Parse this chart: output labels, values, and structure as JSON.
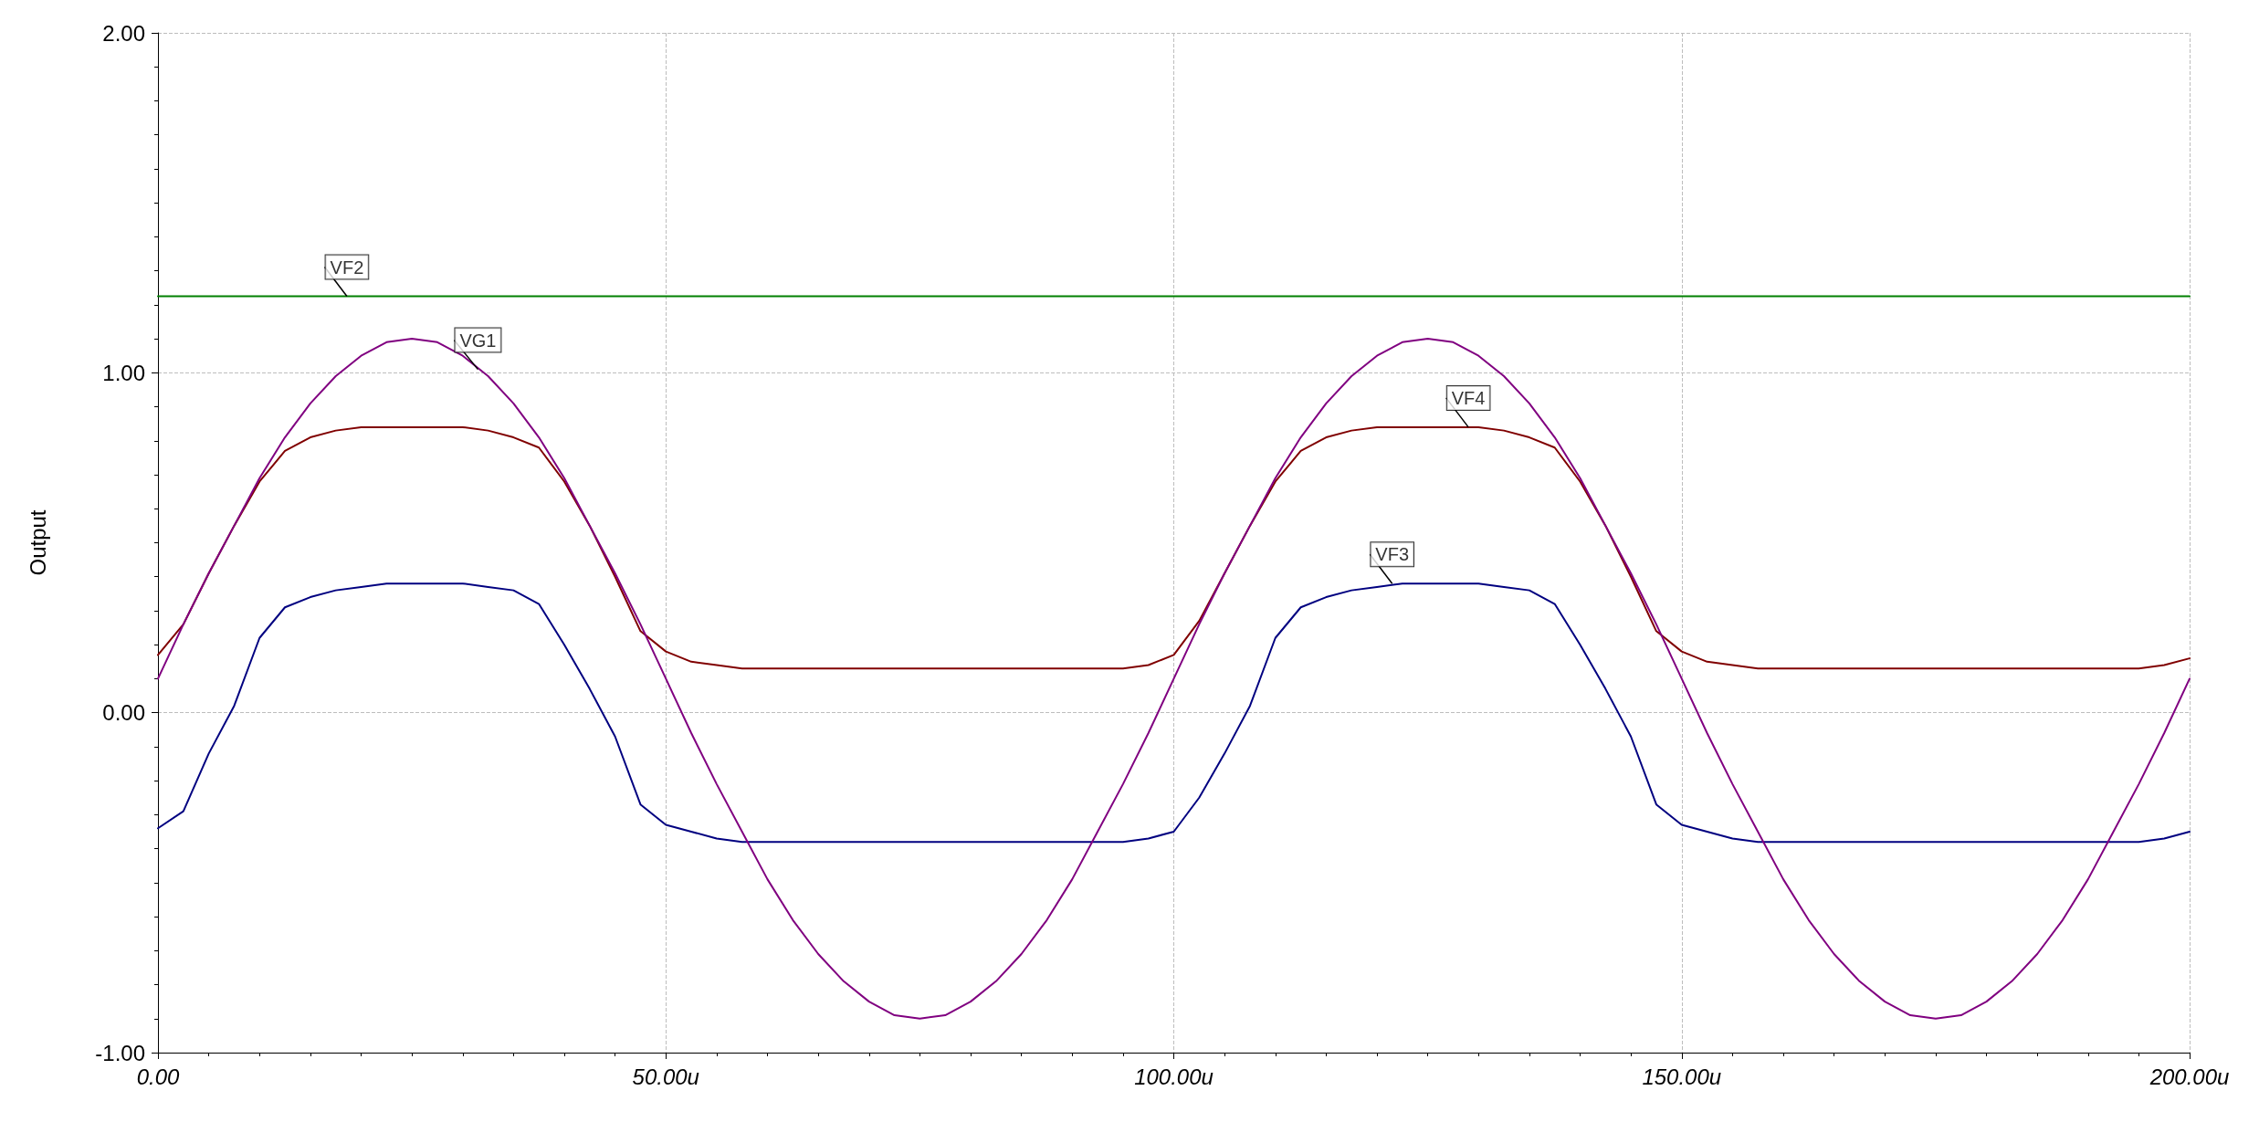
{
  "chart_data": {
    "type": "line",
    "ylabel": "Output",
    "x": [
      0,
      2.5,
      5,
      7.5,
      10,
      12.5,
      15,
      17.5,
      20,
      22.5,
      25,
      27.5,
      30,
      32.5,
      35,
      37.5,
      40,
      42.5,
      45,
      47.5,
      50,
      52.5,
      55,
      57.5,
      60,
      62.5,
      65,
      67.5,
      70,
      72.5,
      75,
      77.5,
      80,
      82.5,
      85,
      87.5,
      90,
      92.5,
      95,
      97.5,
      100,
      102.5,
      105,
      107.5,
      110,
      112.5,
      115,
      117.5,
      120,
      122.5,
      125,
      127.5,
      130,
      132.5,
      135,
      137.5,
      140,
      142.5,
      145,
      147.5,
      150,
      152.5,
      155,
      157.5,
      160,
      162.5,
      165,
      167.5,
      170,
      172.5,
      175,
      177.5,
      180,
      182.5,
      185,
      187.5,
      190,
      192.5,
      195,
      197.5,
      200
    ],
    "series": [
      {
        "color": "#008000",
        "values": [
          1.225,
          1.225,
          1.225,
          1.225,
          1.225,
          1.225,
          1.225,
          1.225,
          1.225,
          1.225,
          1.225,
          1.225,
          1.225,
          1.225,
          1.225,
          1.225,
          1.225,
          1.225,
          1.225,
          1.225,
          1.225,
          1.225,
          1.225,
          1.225,
          1.225,
          1.225,
          1.225,
          1.225,
          1.225,
          1.225,
          1.225,
          1.225,
          1.225,
          1.225,
          1.225,
          1.225,
          1.225,
          1.225,
          1.225,
          1.225,
          1.225,
          1.225,
          1.225,
          1.225,
          1.225,
          1.225,
          1.225,
          1.225,
          1.225,
          1.225,
          1.225,
          1.225,
          1.225,
          1.225,
          1.225,
          1.225,
          1.225,
          1.225,
          1.225,
          1.225,
          1.225,
          1.225,
          1.225,
          1.225,
          1.225,
          1.225,
          1.225,
          1.225,
          1.225,
          1.225,
          1.225,
          1.225,
          1.225,
          1.225,
          1.225,
          1.225,
          1.225,
          1.225,
          1.225,
          1.225,
          1.225
        ]
      },
      {
        "color": "#800000",
        "values": [
          0.17,
          0.26,
          0.41,
          0.55,
          0.68,
          0.77,
          0.81,
          0.83,
          0.84,
          0.84,
          0.84,
          0.84,
          0.84,
          0.83,
          0.81,
          0.78,
          0.68,
          0.55,
          0.4,
          0.24,
          0.18,
          0.15,
          0.14,
          0.13,
          0.13,
          0.13,
          0.13,
          0.13,
          0.13,
          0.13,
          0.13,
          0.13,
          0.13,
          0.13,
          0.13,
          0.13,
          0.13,
          0.13,
          0.13,
          0.14,
          0.17,
          0.27,
          0.41,
          0.55,
          0.68,
          0.77,
          0.81,
          0.83,
          0.84,
          0.84,
          0.84,
          0.84,
          0.84,
          0.83,
          0.81,
          0.78,
          0.68,
          0.55,
          0.4,
          0.24,
          0.18,
          0.15,
          0.14,
          0.13,
          0.13,
          0.13,
          0.13,
          0.13,
          0.13,
          0.13,
          0.13,
          0.13,
          0.13,
          0.13,
          0.13,
          0.13,
          0.13,
          0.13,
          0.13,
          0.14,
          0.16
        ]
      },
      {
        "color": "#000080",
        "values": [
          -0.34,
          -0.29,
          -0.12,
          0.02,
          0.22,
          0.31,
          0.34,
          0.36,
          0.37,
          0.38,
          0.38,
          0.38,
          0.38,
          0.37,
          0.36,
          0.32,
          0.2,
          0.07,
          -0.07,
          -0.27,
          -0.33,
          -0.35,
          -0.37,
          -0.38,
          -0.38,
          -0.38,
          -0.38,
          -0.38,
          -0.38,
          -0.38,
          -0.38,
          -0.38,
          -0.38,
          -0.38,
          -0.38,
          -0.38,
          -0.38,
          -0.38,
          -0.38,
          -0.37,
          -0.35,
          -0.25,
          -0.12,
          0.02,
          0.22,
          0.31,
          0.34,
          0.36,
          0.37,
          0.38,
          0.38,
          0.38,
          0.38,
          0.37,
          0.36,
          0.32,
          0.2,
          0.07,
          -0.07,
          -0.27,
          -0.33,
          -0.35,
          -0.37,
          -0.38,
          -0.38,
          -0.38,
          -0.38,
          -0.38,
          -0.38,
          -0.38,
          -0.38,
          -0.38,
          -0.38,
          -0.38,
          -0.38,
          -0.38,
          -0.38,
          -0.38,
          -0.38,
          -0.37,
          -0.35
        ]
      },
      {
        "color": "#800080",
        "values": [
          0.1,
          0.26,
          0.41,
          0.55,
          0.69,
          0.81,
          0.91,
          0.99,
          1.05,
          1.09,
          1.1,
          1.09,
          1.05,
          0.99,
          0.91,
          0.81,
          0.69,
          0.55,
          0.41,
          0.26,
          0.1,
          -0.06,
          -0.21,
          -0.35,
          -0.49,
          -0.61,
          -0.71,
          -0.79,
          -0.85,
          -0.89,
          -0.9,
          -0.89,
          -0.85,
          -0.79,
          -0.71,
          -0.61,
          -0.49,
          -0.35,
          -0.21,
          -0.06,
          0.1,
          0.26,
          0.41,
          0.55,
          0.69,
          0.81,
          0.91,
          0.99,
          1.05,
          1.09,
          1.1,
          1.09,
          1.05,
          0.99,
          0.91,
          0.81,
          0.69,
          0.55,
          0.41,
          0.26,
          0.1,
          -0.06,
          -0.21,
          -0.35,
          -0.49,
          -0.61,
          -0.71,
          -0.79,
          -0.85,
          -0.89,
          -0.9,
          -0.89,
          -0.85,
          -0.79,
          -0.71,
          -0.61,
          -0.49,
          -0.35,
          -0.21,
          -0.06,
          0.1
        ]
      }
    ],
    "annotations": [
      {
        "text": "VF2",
        "x": 18.6,
        "y": 1.225
      },
      {
        "text": "VG1",
        "x": 31.5,
        "y": 1.01
      },
      {
        "text": "VF4",
        "x": 129,
        "y": 0.84
      },
      {
        "text": "VF3",
        "x": 121.5,
        "y": 0.38
      }
    ],
    "xlim": [
      0,
      200
    ],
    "xticks": [
      {
        "value": 0,
        "label": "0.00"
      },
      {
        "value": 50,
        "label": "50.00u"
      },
      {
        "value": 100,
        "label": "100.00u"
      },
      {
        "value": 150,
        "label": "150.00u"
      },
      {
        "value": 200,
        "label": "200.00u"
      }
    ],
    "ylim": [
      -1,
      2
    ],
    "yticks": [
      {
        "value": -1,
        "label": "-1.00"
      },
      {
        "value": 0,
        "label": "0.00"
      },
      {
        "value": 1,
        "label": "1.00"
      },
      {
        "value": 2,
        "label": "2.00"
      }
    ],
    "grid": true,
    "marker": "none",
    "line_style": "solid"
  }
}
